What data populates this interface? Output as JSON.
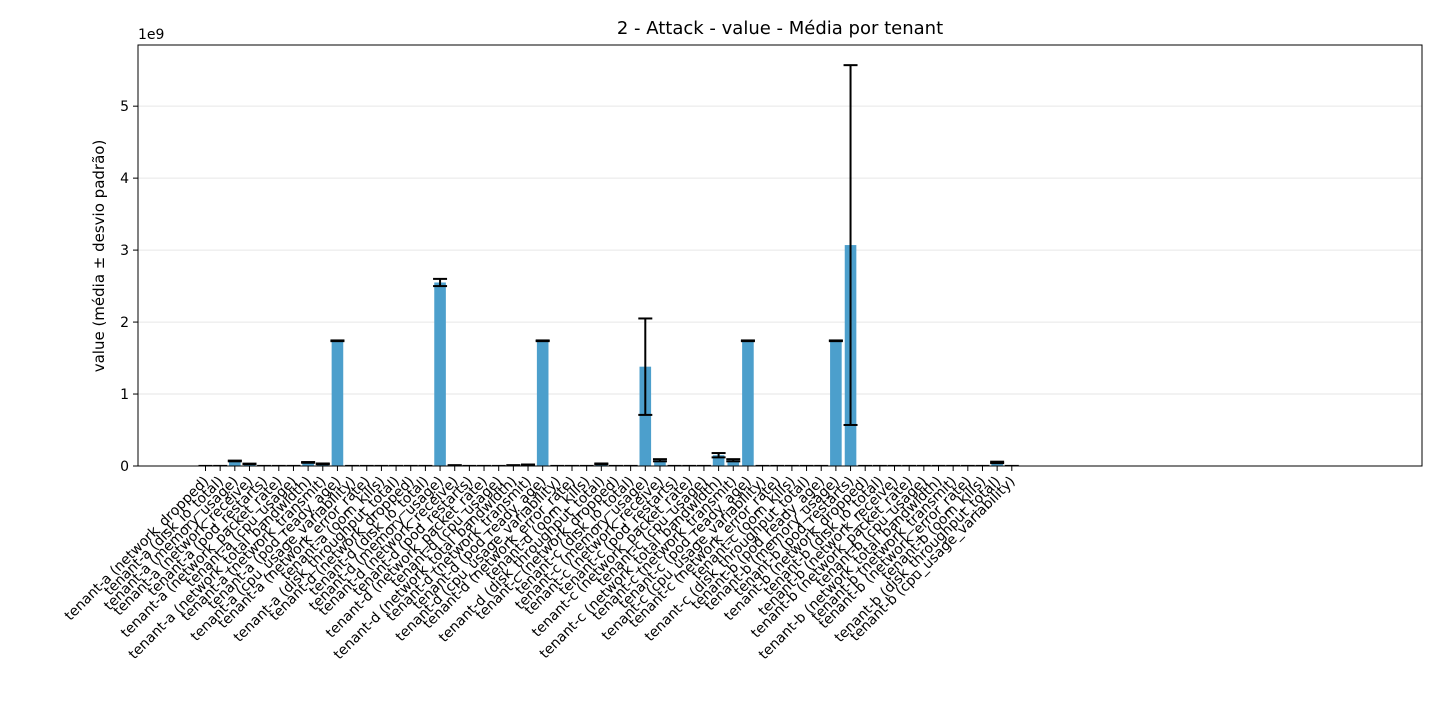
{
  "chart_data": {
    "type": "bar",
    "title": "2 - Attack - value - Média por tenant",
    "ylabel": "value (média ± desvio padrão)",
    "xlabel": "",
    "y_offset_label": "1e9",
    "y_scale_multiplier": 1000000000,
    "ylim": [
      0,
      5.85
    ],
    "yticks": [
      0,
      1,
      2,
      3,
      4,
      5
    ],
    "grid": "y",
    "bar_color": "#4c9fcc",
    "categories": [
      "tenant-a (network_dropped)",
      "tenant-a (disk_io_total)",
      "tenant-a (memory_usage)",
      "tenant-a (network_receive)",
      "tenant-a (pod_restarts)",
      "tenant-a (network_packet_rate)",
      "tenant-a (cpu_usage)",
      "tenant-a (network_total_bandwidth)",
      "tenant-a (network_transmit)",
      "tenant-a (pod_ready_age)",
      "tenant-a (cpu_usage_variability)",
      "tenant-a (network_error_rate)",
      "tenant-a (oom_kills)",
      "tenant-a (disk_throughput_total)",
      "tenant-d (network_dropped)",
      "tenant-d (disk_io_total)",
      "tenant-d (memory_usage)",
      "tenant-d (network_receive)",
      "tenant-d (pod_restarts)",
      "tenant-d (network_packet_rate)",
      "tenant-d (cpu_usage)",
      "tenant-d (network_total_bandwidth)",
      "tenant-d (network_transmit)",
      "tenant-d (pod_ready_age)",
      "tenant-d (cpu_usage_variability)",
      "tenant-d (network_error_rate)",
      "tenant-d (oom_kills)",
      "tenant-d (disk_throughput_total)",
      "tenant-c (network_dropped)",
      "tenant-c (disk_io_total)",
      "tenant-c (memory_usage)",
      "tenant-c (network_receive)",
      "tenant-c (pod_restarts)",
      "tenant-c (network_packet_rate)",
      "tenant-c (cpu_usage)",
      "tenant-c (network_total_bandwidth)",
      "tenant-c (network_transmit)",
      "tenant-c (pod_ready_age)",
      "tenant-c (cpu_usage_variability)",
      "tenant-c (network_error_rate)",
      "tenant-c (oom_kills)",
      "tenant-c (disk_throughput_total)",
      "tenant-b (pod_ready_age)",
      "tenant-b (memory_usage)",
      "tenant-b (pod_restarts)",
      "tenant-b (network_dropped)",
      "tenant-b (disk_io_total)",
      "tenant-b (network_receive)",
      "tenant-b (network_packet_rate)",
      "tenant-b (cpu_usage)",
      "tenant-b (network_total_bandwidth)",
      "tenant-b (network_transmit)",
      "tenant-b (network_error_rate)",
      "tenant-b (oom_kills)",
      "tenant-b (disk_throughput_total)",
      "tenant-b (cpu_usage_variability)"
    ],
    "values": [
      0,
      0,
      0.07,
      0.03,
      0,
      0,
      0,
      0.05,
      0.03,
      1.74,
      0,
      0,
      0,
      0,
      0,
      0,
      2.55,
      0.01,
      0,
      0,
      0,
      0.01,
      0.02,
      1.74,
      0,
      0,
      0,
      0.03,
      0,
      0,
      1.38,
      0.08,
      0,
      0,
      0,
      0.15,
      0.08,
      1.74,
      0,
      0,
      0,
      0,
      0,
      1.74,
      3.07,
      0,
      0,
      0,
      0,
      0,
      0,
      0,
      0,
      0,
      0.05,
      0
    ],
    "errors": [
      0,
      0,
      0.005,
      0.003,
      0,
      0,
      0,
      0.005,
      0.005,
      0.005,
      0,
      0,
      0,
      0,
      0,
      0,
      0.05,
      0,
      0,
      0,
      0,
      0,
      0,
      0.005,
      0,
      0,
      0,
      0.005,
      0,
      0,
      0.67,
      0.015,
      0,
      0,
      0,
      0.03,
      0.015,
      0.005,
      0,
      0,
      0,
      0,
      0,
      0.005,
      2.5,
      0,
      0,
      0,
      0,
      0,
      0,
      0,
      0,
      0,
      0.01,
      0
    ]
  }
}
